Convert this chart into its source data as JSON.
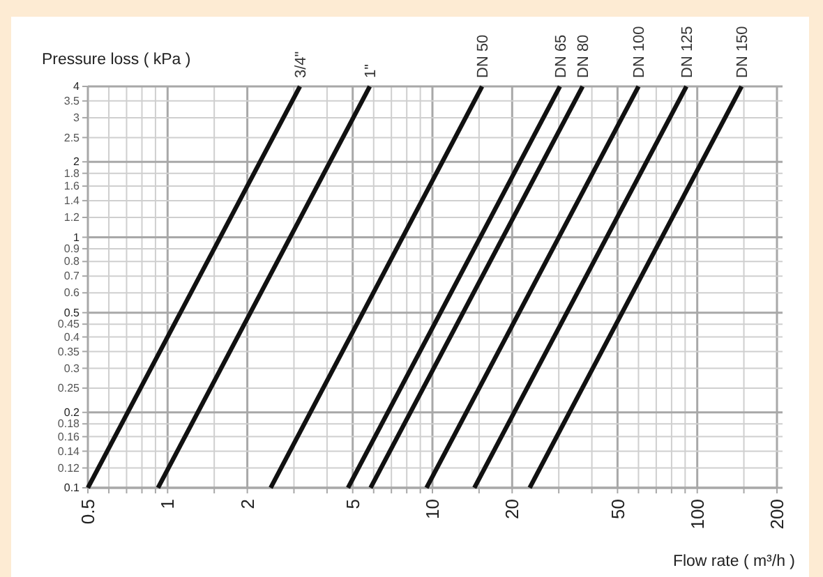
{
  "chart_data": {
    "type": "line",
    "xlabel": "Flow rate ( m³/h )",
    "ylabel": "Pressure loss ( kPa )",
    "log": "xy",
    "grid": true,
    "legend": false,
    "marker": "none",
    "line_style": "solid",
    "xlim": [
      0.5,
      200
    ],
    "ylim": [
      0.1,
      4
    ],
    "xticks": [
      0.5,
      {
        "value": 0.6,
        "label": null
      },
      {
        "value": 0.7,
        "label": null
      },
      {
        "value": 0.8,
        "label": null
      },
      {
        "value": 0.9,
        "label": null
      },
      1,
      {
        "value": 1.5,
        "label": null
      },
      2,
      {
        "value": 3,
        "label": null
      },
      {
        "value": 4,
        "label": null
      },
      5,
      {
        "value": 6,
        "label": null
      },
      {
        "value": 7,
        "label": null
      },
      {
        "value": 8,
        "label": null
      },
      {
        "value": 9,
        "label": null
      },
      10,
      {
        "value": 15,
        "label": null
      },
      20,
      {
        "value": 30,
        "label": null
      },
      {
        "value": 40,
        "label": null
      },
      50,
      {
        "value": 60,
        "label": null
      },
      {
        "value": 70,
        "label": null
      },
      {
        "value": 80,
        "label": null
      },
      {
        "value": 90,
        "label": null
      },
      100,
      {
        "value": 150,
        "label": null
      },
      200
    ],
    "yticks": [
      0.1,
      0.12,
      0.14,
      0.16,
      0.18,
      0.2,
      0.25,
      0.3,
      0.35,
      0.4,
      0.45,
      0.5,
      0.6,
      0.7,
      0.8,
      0.9,
      1,
      1.2,
      1.4,
      1.6,
      1.8,
      2,
      2.5,
      3,
      3.5,
      4
    ],
    "series": [
      {
        "name": "3/4\"",
        "color": "#111111",
        "x": [
          0.5,
          3.16
        ],
        "values": [
          0.1,
          4
        ]
      },
      {
        "name": "1\"",
        "color": "#111111",
        "x": [
          0.92,
          5.8
        ],
        "values": [
          0.1,
          4
        ]
      },
      {
        "name": "DN 50",
        "color": "#111111",
        "x": [
          2.45,
          15.4
        ],
        "values": [
          0.1,
          4
        ]
      },
      {
        "name": "DN 65",
        "color": "#111111",
        "x": [
          4.8,
          30.3
        ],
        "values": [
          0.1,
          4
        ]
      },
      {
        "name": "DN 80",
        "color": "#111111",
        "x": [
          5.84,
          36.9
        ],
        "values": [
          0.1,
          4
        ]
      },
      {
        "name": "DN 100",
        "color": "#111111",
        "x": [
          9.5,
          60
        ],
        "values": [
          0.1,
          4
        ]
      },
      {
        "name": "DN 125",
        "color": "#111111",
        "x": [
          14.4,
          91
        ],
        "values": [
          0.1,
          4
        ]
      },
      {
        "name": "DN 150",
        "color": "#111111",
        "x": [
          23.3,
          147
        ],
        "values": [
          0.1,
          4
        ]
      }
    ]
  }
}
